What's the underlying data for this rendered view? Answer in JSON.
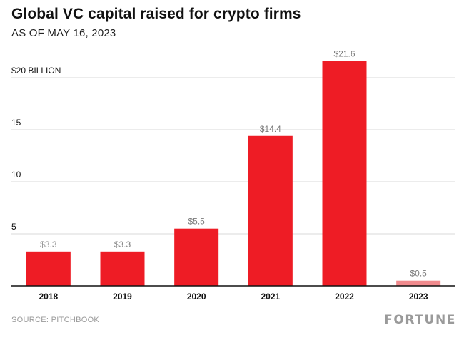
{
  "header": {
    "title": "Global VC capital raised for crypto firms",
    "subtitle": "AS OF MAY 16, 2023"
  },
  "footer": {
    "source": "SOURCE: PITCHBOOK",
    "brand": "FORTUNE"
  },
  "chart_data": {
    "type": "bar",
    "categories": [
      "2018",
      "2019",
      "2020",
      "2021",
      "2022",
      "2023"
    ],
    "values": [
      3.3,
      3.3,
      5.5,
      14.4,
      21.6,
      0.5
    ],
    "value_labels": [
      "$3.3",
      "$3.3",
      "$5.5",
      "$14.4",
      "$21.6",
      "$0.5"
    ],
    "yticks": [
      5,
      10,
      15,
      20
    ],
    "ytick_labels": [
      "5",
      "10",
      "15",
      "$20 BILLION"
    ],
    "ylim": [
      0,
      25
    ],
    "grid": true,
    "colors": {
      "bar": "#ee1c25",
      "bar_partial": "#f08a8d",
      "grid": "#d9d9d9",
      "axis": "#111111",
      "value_label": "#7a7a7a"
    },
    "partial_category": "2023"
  }
}
